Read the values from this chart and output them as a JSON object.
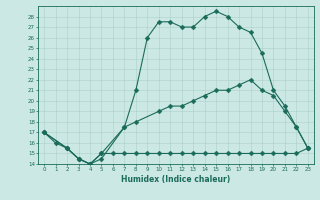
{
  "xlabel": "Humidex (Indice chaleur)",
  "bg_color": "#cce8e4",
  "line_color": "#1a6b5a",
  "grid_color": "#aacfca",
  "xlim": [
    -0.5,
    23.5
  ],
  "ylim": [
    14,
    29
  ],
  "xticks": [
    0,
    1,
    2,
    3,
    4,
    5,
    6,
    7,
    8,
    9,
    10,
    11,
    12,
    13,
    14,
    15,
    16,
    17,
    18,
    19,
    20,
    21,
    22,
    23
  ],
  "yticks": [
    14,
    15,
    16,
    17,
    18,
    19,
    20,
    21,
    22,
    23,
    24,
    25,
    26,
    27,
    28
  ],
  "line1_x": [
    0,
    1,
    2,
    3,
    4,
    5,
    7,
    8,
    9,
    10,
    11,
    12,
    13,
    14,
    15,
    16,
    17,
    18,
    19,
    20,
    21,
    22,
    23
  ],
  "line1_y": [
    17,
    16,
    15.5,
    14.5,
    14,
    14.5,
    17.5,
    21,
    26,
    27.5,
    27.5,
    27,
    27,
    28,
    28.5,
    28,
    27,
    26.5,
    24.5,
    21,
    19.5,
    17.5,
    15.5
  ],
  "line2_x": [
    0,
    2,
    3,
    4,
    5,
    7,
    8,
    10,
    11,
    12,
    13,
    14,
    15,
    16,
    17,
    18,
    19,
    20,
    21,
    22,
    23
  ],
  "line2_y": [
    17,
    15.5,
    14.5,
    14,
    15,
    17.5,
    18,
    19,
    19.5,
    19.5,
    20,
    20.5,
    21,
    21,
    21.5,
    22,
    21,
    20.5,
    19,
    17.5,
    15.5
  ],
  "line3_x": [
    0,
    2,
    3,
    4,
    5,
    6,
    7,
    8,
    9,
    10,
    11,
    12,
    13,
    14,
    15,
    16,
    17,
    18,
    19,
    20,
    21,
    22,
    23
  ],
  "line3_y": [
    17,
    15.5,
    14.5,
    14,
    15,
    15,
    15,
    15,
    15,
    15,
    15,
    15,
    15,
    15,
    15,
    15,
    15,
    15,
    15,
    15,
    15,
    15,
    15.5
  ]
}
